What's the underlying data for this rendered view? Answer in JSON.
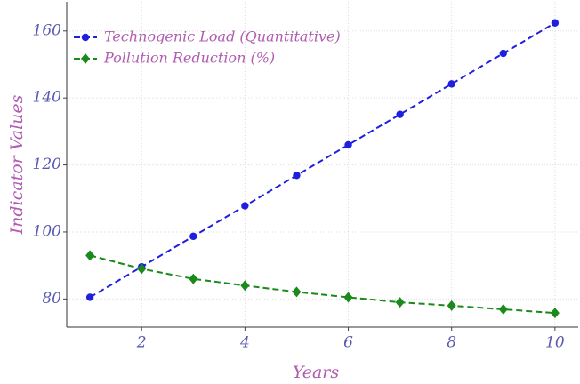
{
  "chart_data": {
    "type": "line",
    "xlabel": "Years",
    "ylabel": "Indicator Values",
    "x": [
      1,
      2,
      3,
      4,
      5,
      6,
      7,
      8,
      9,
      10
    ],
    "series": [
      {
        "name": "Technogenic Load (Quantitative)",
        "color": "#1f1fe0",
        "marker": "circle",
        "values": [
          80.5,
          89.6,
          98.7,
          107.8,
          116.9,
          126.0,
          135.1,
          144.2,
          153.3,
          162.4
        ]
      },
      {
        "name": "Pollution Reduction (%)",
        "color": "#1a8a1a",
        "marker": "diamond",
        "values": [
          93.0,
          89.0,
          86.0,
          84.0,
          82.1,
          80.5,
          79.0,
          78.0,
          76.9,
          75.8
        ]
      }
    ],
    "xlim": [
      0.55,
      10.45
    ],
    "ylim": [
      71.6,
      168.7
    ],
    "xticks": [
      2,
      4,
      6,
      8,
      10
    ],
    "yticks": [
      80,
      100,
      120,
      140,
      160
    ],
    "grid": true,
    "legend": "upper left",
    "linestyle": "dashed"
  }
}
